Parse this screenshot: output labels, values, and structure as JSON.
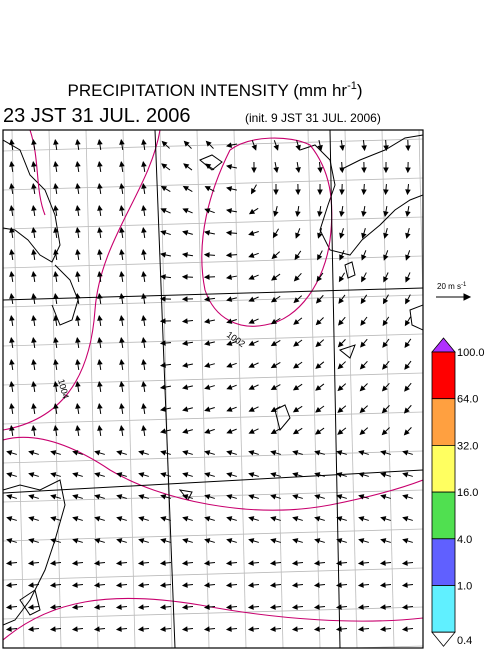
{
  "header": {
    "title": {
      "main": "PRECIPITATION INTENSITY (mm hr",
      "exponent": "-1",
      "close": ")"
    },
    "valid_time": "23 JST 31 JUL. 2006",
    "init_time": "(init. 9 JST 31 JUL. 2006)"
  },
  "wind_legend": {
    "main": "20 m s",
    "exponent": "-1"
  },
  "contour_labels": [
    "1002",
    "1004"
  ],
  "colorbar": {
    "labels": [
      "100.0",
      "64.0",
      "32.0",
      "16.0",
      "4.0",
      "1.0",
      "0.4"
    ]
  }
}
